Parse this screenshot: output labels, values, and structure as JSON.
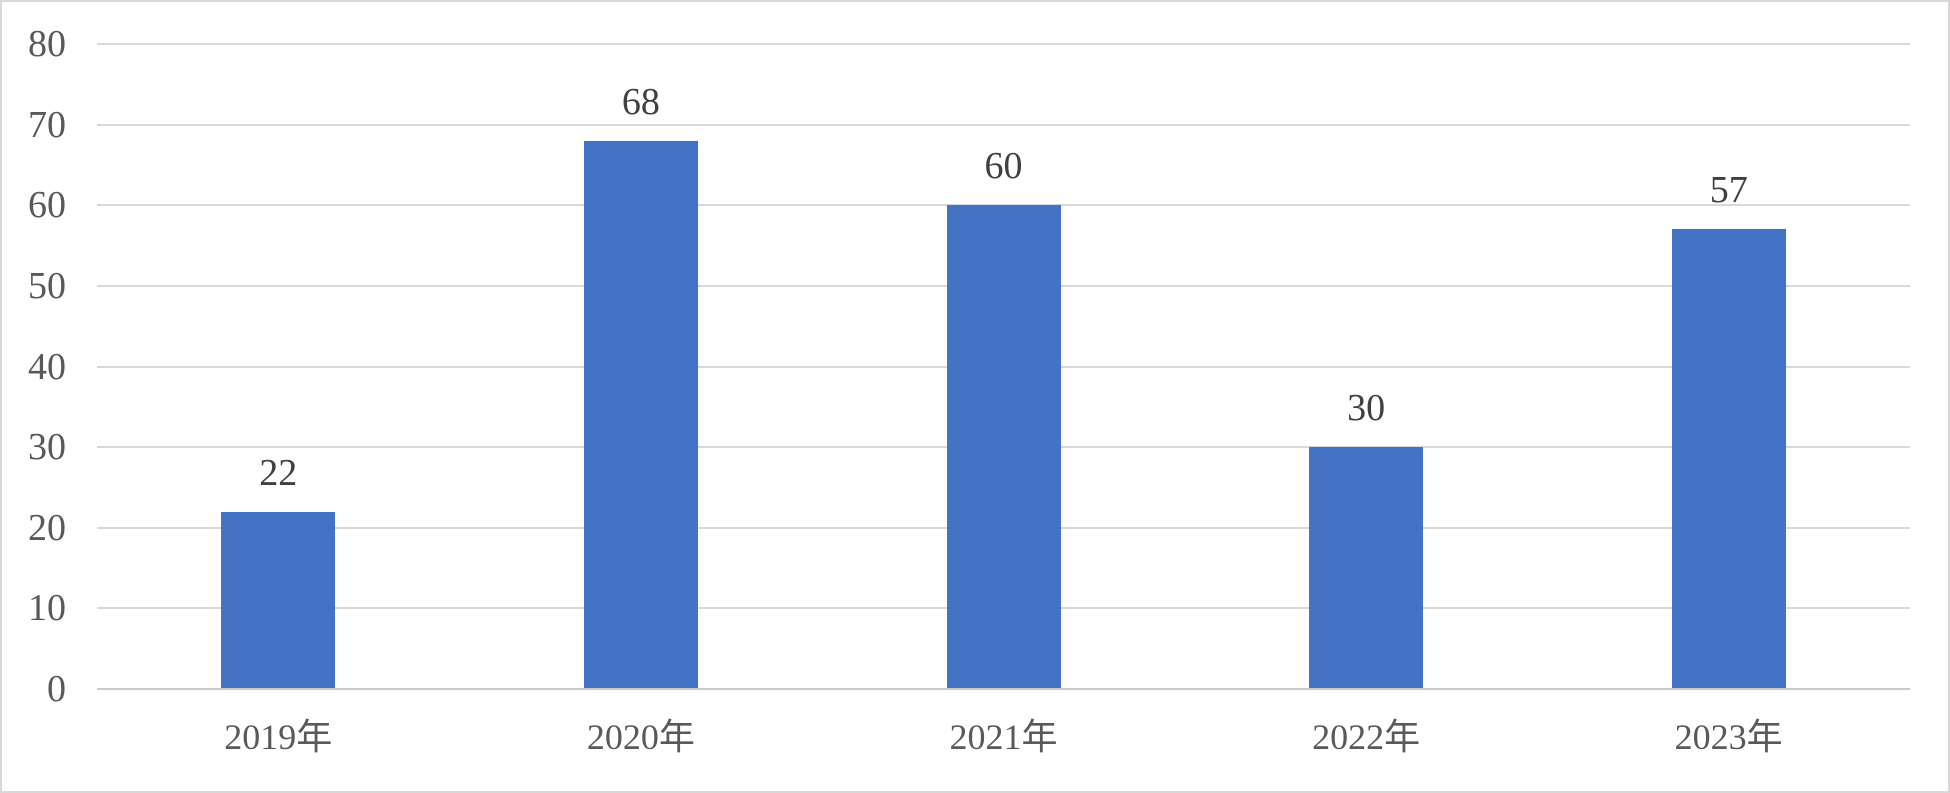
{
  "chart_data": {
    "type": "bar",
    "title": "",
    "xlabel": "",
    "ylabel": "",
    "categories": [
      "2019年",
      "2020年",
      "2021年",
      "2022年",
      "2023年"
    ],
    "values": [
      22,
      68,
      60,
      30,
      57
    ],
    "data_labels": [
      "22",
      "68",
      "60",
      "30",
      "57"
    ],
    "yticks": [
      0,
      10,
      20,
      30,
      40,
      50,
      60,
      70,
      80
    ],
    "ytick_labels": [
      "0",
      "10",
      "20",
      "30",
      "40",
      "50",
      "60",
      "70",
      "80"
    ],
    "ylim": [
      0,
      80
    ],
    "grid": true,
    "legend": false,
    "colors": {
      "bar": "#4472C4",
      "gridline": "#D9D9D9",
      "axis_line": "#C9C9C9",
      "data_label_text": "#404040",
      "tick_label_text": "#595959",
      "background": "#FFFFFF",
      "frame_border": "#D8D8D8"
    }
  }
}
